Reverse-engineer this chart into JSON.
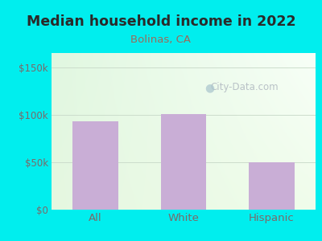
{
  "title": "Median household income in 2022",
  "subtitle": "Bolinas, CA",
  "categories": [
    "All",
    "White",
    "Hispanic"
  ],
  "values": [
    93000,
    101000,
    50000
  ],
  "bar_color": "#c9aed6",
  "background_color": "#00EEEE",
  "title_color": "#2a2a2a",
  "subtitle_color": "#9b6b5a",
  "tick_label_color": "#7a6a6a",
  "yticks": [
    0,
    50000,
    100000,
    150000
  ],
  "ytick_labels": [
    "$0",
    "$50k",
    "$100k",
    "$150k"
  ],
  "ylim": [
    0,
    165000
  ],
  "watermark": "City-Data.com",
  "watermark_color": "#b0b8c0",
  "grid_color": "#ccddcc"
}
